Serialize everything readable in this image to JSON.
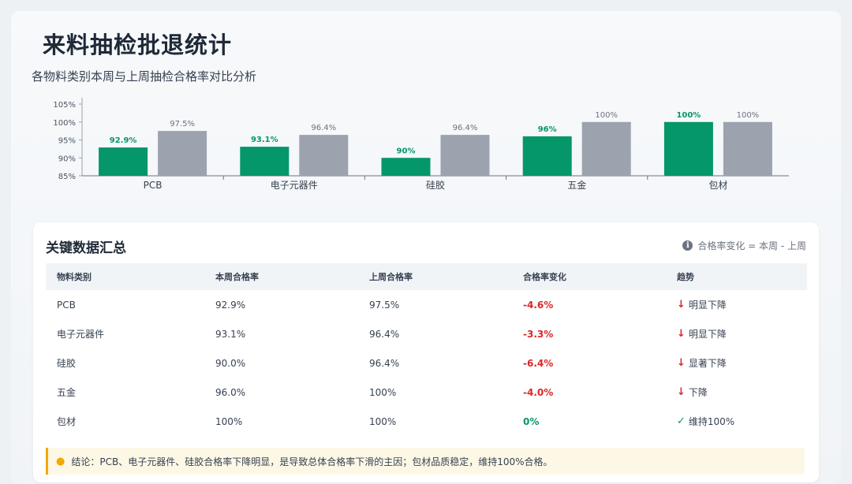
{
  "header": {
    "title": "来料抽检批退统计",
    "subtitle": "各物料类别本周与上周抽检合格率对比分析"
  },
  "chart_data": {
    "type": "bar",
    "categories": [
      "PCB",
      "电子元器件",
      "硅胶",
      "五金",
      "包材"
    ],
    "series": [
      {
        "values": [
          92.9,
          93.1,
          90,
          96,
          100
        ],
        "labels": [
          "92.9%",
          "93.1%",
          "90%",
          "96%",
          "100%"
        ],
        "color": "#059669"
      },
      {
        "values": [
          97.5,
          96.4,
          96.4,
          100,
          100
        ],
        "labels": [
          "97.5%",
          "96.4%",
          "96.4%",
          "100%",
          "100%"
        ],
        "color": "#9ca3af"
      }
    ],
    "ylim": [
      85,
      105
    ],
    "yticks": [
      85,
      90,
      95,
      100,
      105
    ],
    "ytick_labels": [
      "85%",
      "90%",
      "95%",
      "100%",
      "105%"
    ],
    "grid": false,
    "title": "",
    "xlabel": "",
    "ylabel": ""
  },
  "summary": {
    "title": "关键数据汇总",
    "note": "合格率变化 = 本周 - 上周",
    "info_icon": "info-icon",
    "headers": [
      "物料类别",
      "本周合格率",
      "上周合格率",
      "合格率变化",
      "趋势"
    ],
    "rows": [
      {
        "category": "PCB",
        "this_week": "92.9%",
        "last_week": "97.5%",
        "change": "-4.6%",
        "trend": "明显下降",
        "trend_icon": "arrow-down-icon"
      },
      {
        "category": "电子元器件",
        "this_week": "93.1%",
        "last_week": "96.4%",
        "change": "-3.3%",
        "trend": "明显下降",
        "trend_icon": "arrow-down-icon"
      },
      {
        "category": "硅胶",
        "this_week": "90.0%",
        "last_week": "96.4%",
        "change": "-6.4%",
        "trend": "显著下降",
        "trend_icon": "arrow-down-icon"
      },
      {
        "category": "五金",
        "this_week": "96.0%",
        "last_week": "100%",
        "change": "-4.0%",
        "trend": "下降",
        "trend_icon": "arrow-down-icon"
      },
      {
        "category": "包材",
        "this_week": "100%",
        "last_week": "100%",
        "change": "0%",
        "trend": "维持100%",
        "trend_icon": "check-icon"
      }
    ],
    "conclusion": "结论：PCB、电子元器件、硅胶合格率下降明显，是导致总体合格率下滑的主因；包材品质稳定，维持100%合格。",
    "conclusion_icon": "lightbulb-icon"
  },
  "colors": {
    "this_week": "#059669",
    "last_week": "#9ca3af",
    "negative": "#dc2626",
    "accent": "#f2a900"
  }
}
